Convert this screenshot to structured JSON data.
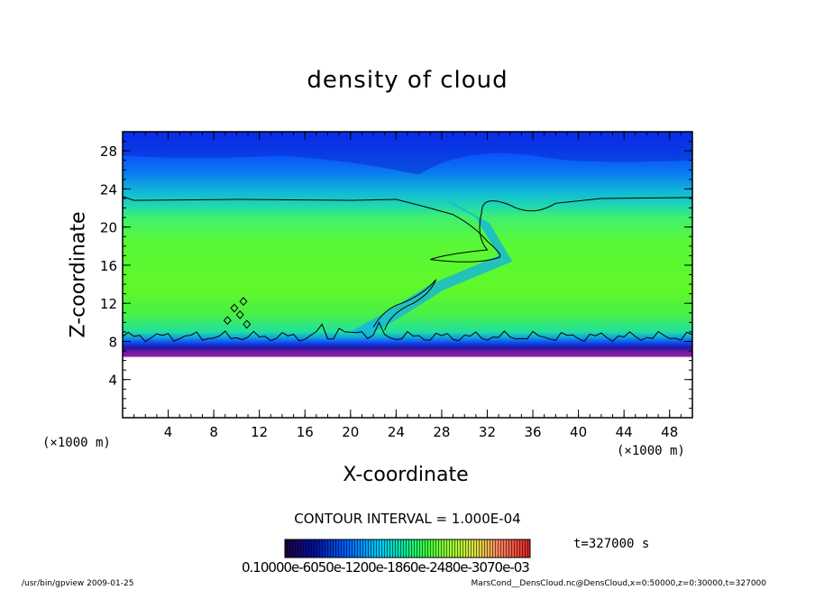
{
  "chart_data": {
    "type": "heatmap",
    "title": "density of cloud",
    "xlabel": "X-coordinate",
    "ylabel": "Z-coordinate",
    "x_unit": "(×1000 m)",
    "x_ticks": [
      4,
      8,
      12,
      16,
      20,
      24,
      28,
      32,
      36,
      40,
      44,
      48
    ],
    "y_ticks": [
      4,
      8,
      12,
      16,
      20,
      24,
      28
    ],
    "xlim": [
      0,
      50
    ],
    "ylim": [
      0,
      30
    ],
    "field_summary": {
      "cloud_base_km": 6.5,
      "upper_contour_km": 23,
      "lower_contour_km": 8.5,
      "plume_path": [
        [
          20,
          9
        ],
        [
          23,
          11
        ],
        [
          27,
          14
        ],
        [
          33,
          17
        ],
        [
          31,
          21
        ],
        [
          28,
          23
        ]
      ],
      "top_low_density_region_km": [
        24,
        30
      ]
    },
    "contour_interval": "CONTOUR INTERVAL = 1.000E-04",
    "time_label": "t=327000 s",
    "colorbar_ticks_text": "0.10000e-6050e-1200e-1860e-2480e-3070e-03",
    "colorbar_colors": [
      "#200040",
      "#0010a0",
      "#0060ff",
      "#00c8ff",
      "#00e8a0",
      "#40ff40",
      "#a0ff30",
      "#e0e040",
      "#ff8060",
      "#e02020"
    ],
    "grid": false,
    "legend": "bottom-center colorbar"
  },
  "footer": {
    "left": "/usr/bin/gpview   2009-01-25",
    "right": "MarsCond__DensCloud.nc@DensCloud,x=0:50000,z=0:30000,t=327000"
  }
}
